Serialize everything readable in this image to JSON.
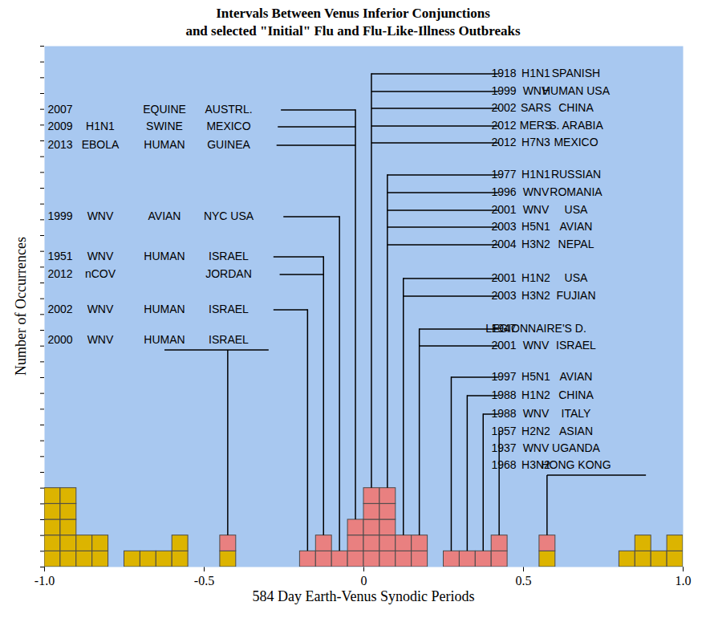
{
  "chart_data": {
    "type": "histogram",
    "title": "Intervals Between Venus Inferior Conjunctions",
    "subtitle": "and selected \"Initial\" Flu and Flu-Like-Illness Outbreaks",
    "x_label": "584 Day Earth-Venus Synodic Periods",
    "y_label": "Number of Occurrences",
    "bins": [
      -1,
      -0.95,
      -0.9,
      -0.85,
      -0.8,
      -0.75,
      -0.7,
      -0.65,
      -0.6,
      -0.55,
      -0.5,
      -0.45,
      -0.4,
      -0.35,
      -0.3,
      -0.25,
      -0.2,
      -0.15,
      -0.1,
      -0.05,
      0,
      0.05,
      0.1,
      0.15,
      0.2,
      0.25,
      0.3,
      0.35,
      0.4,
      0.45,
      0.5,
      0.55,
      0.6,
      0.65,
      0.7,
      0.75,
      0.8,
      0.85,
      0.9,
      0.95,
      1
    ],
    "series": [
      {
        "color": "#dcb400",
        "values": [
          5,
          5,
          2,
          2,
          0,
          1,
          1,
          1,
          2,
          0,
          0,
          1,
          0,
          0,
          0,
          0,
          0,
          0,
          0,
          0,
          0,
          0,
          0,
          0,
          0,
          0,
          0,
          0,
          0,
          0,
          0,
          1,
          0,
          0,
          0,
          0,
          1,
          2,
          1,
          2
        ]
      },
      {
        "color": "#e98080",
        "values": [
          0,
          0,
          0,
          0,
          0,
          0,
          0,
          0,
          0,
          0,
          0,
          1,
          0,
          0,
          0,
          0,
          1,
          2,
          1,
          3,
          5,
          5,
          2,
          2,
          0,
          1,
          1,
          1,
          2,
          0,
          0,
          1,
          0,
          0,
          0,
          0,
          0,
          0,
          0,
          0
        ]
      }
    ],
    "stacked": true,
    "xlim": [
      -1,
      1
    ],
    "xticks": [
      {
        "value": -1,
        "label": "-1.0"
      },
      -0.5,
      0,
      0.5,
      {
        "value": 1,
        "label": "1.0"
      }
    ],
    "ylim": [
      0,
      33
    ],
    "yticks": [
      0,
      1,
      2,
      3,
      4,
      5,
      6,
      7,
      8,
      9,
      10,
      11,
      12,
      13,
      14,
      15,
      16,
      17,
      18,
      19,
      20,
      21,
      22,
      23,
      24,
      25,
      26,
      27,
      28,
      29,
      30,
      31,
      32,
      33
    ],
    "tick_labels": "x",
    "grid": false,
    "annotations": {
      "left": [
        {
          "x": -0.025,
          "year": "2007",
          "host": "EQUINE",
          "place": "AUSTRL."
        },
        {
          "x": -0.025,
          "year": "2009",
          "code": "H1N1",
          "host": "SWINE",
          "place": "MEXICO"
        },
        {
          "x": -0.025,
          "year": "2013",
          "code": "EBOLA",
          "host": "HUMAN",
          "place": "GUINEA"
        },
        {
          "x": -0.075,
          "year": "1999",
          "code": "WNV",
          "host": "AVIAN",
          "place": "NYC USA"
        },
        {
          "x": -0.125,
          "year": "1951",
          "code": "WNV",
          "host": "HUMAN",
          "place": "ISRAEL"
        },
        {
          "x": -0.125,
          "year": "2012",
          "code": "nCOV",
          "place": "JORDAN"
        },
        {
          "x": -0.175,
          "year": "2002",
          "code": "WNV",
          "host": "HUMAN",
          "place": "ISRAEL"
        },
        {
          "x": -0.425,
          "year": "2000",
          "code": "WNV",
          "host": "HUMAN",
          "place": "ISRAEL"
        }
      ],
      "right": [
        {
          "x": 0.025,
          "year": "1918",
          "code": "H1N1",
          "place": "SPANISH"
        },
        {
          "x": 0.025,
          "year": "1999",
          "code": "WNV",
          "place": "HUMAN USA"
        },
        {
          "x": 0.025,
          "year": "2002",
          "code": "SARS",
          "place": "CHINA"
        },
        {
          "x": 0.025,
          "year": "2012",
          "code": "MERS",
          "place": "S. ARABIA"
        },
        {
          "x": 0.025,
          "year": "2012",
          "code": "H7N3",
          "place": "MEXICO"
        },
        {
          "x": 0.075,
          "year": "1977",
          "code": "H1N1",
          "place": "RUSSIAN"
        },
        {
          "x": 0.075,
          "year": "1996",
          "code": "WNV",
          "place": "ROMANIA"
        },
        {
          "x": 0.075,
          "year": "2001",
          "code": "WNV",
          "place": "USA"
        },
        {
          "x": 0.075,
          "year": "2003",
          "code": "H5N1",
          "place": "AVIAN"
        },
        {
          "x": 0.075,
          "year": "2004",
          "code": "H3N2",
          "place": "NEPAL"
        },
        {
          "x": 0.125,
          "year": "2001",
          "code": "H1N2",
          "place": "USA"
        },
        {
          "x": 0.125,
          "year": "2003",
          "code": "H3N2",
          "place": "FUJIAN"
        },
        {
          "x": 0.175,
          "year": "1947",
          "code": "LEGIONNAIRE'S D."
        },
        {
          "x": 0.175,
          "year": "2001",
          "code": "WNV",
          "place": "ISRAEL"
        },
        {
          "x": 0.275,
          "year": "1997",
          "code": "H5N1",
          "place": "AVIAN"
        },
        {
          "x": 0.325,
          "year": "1988",
          "code": "H1N2",
          "place": "CHINA"
        },
        {
          "x": 0.375,
          "year": "1988",
          "code": "WNV",
          "place": "ITALY"
        },
        {
          "x": 0.425,
          "year": "1957",
          "code": "H2N2",
          "place": "ASIAN"
        },
        {
          "x": 0.425,
          "year": "1937",
          "code": "WNV",
          "place": "UGANDA"
        },
        {
          "x": 0.575,
          "year": "1968",
          "code": "H3N2",
          "place": "HONG KONG"
        }
      ]
    }
  }
}
